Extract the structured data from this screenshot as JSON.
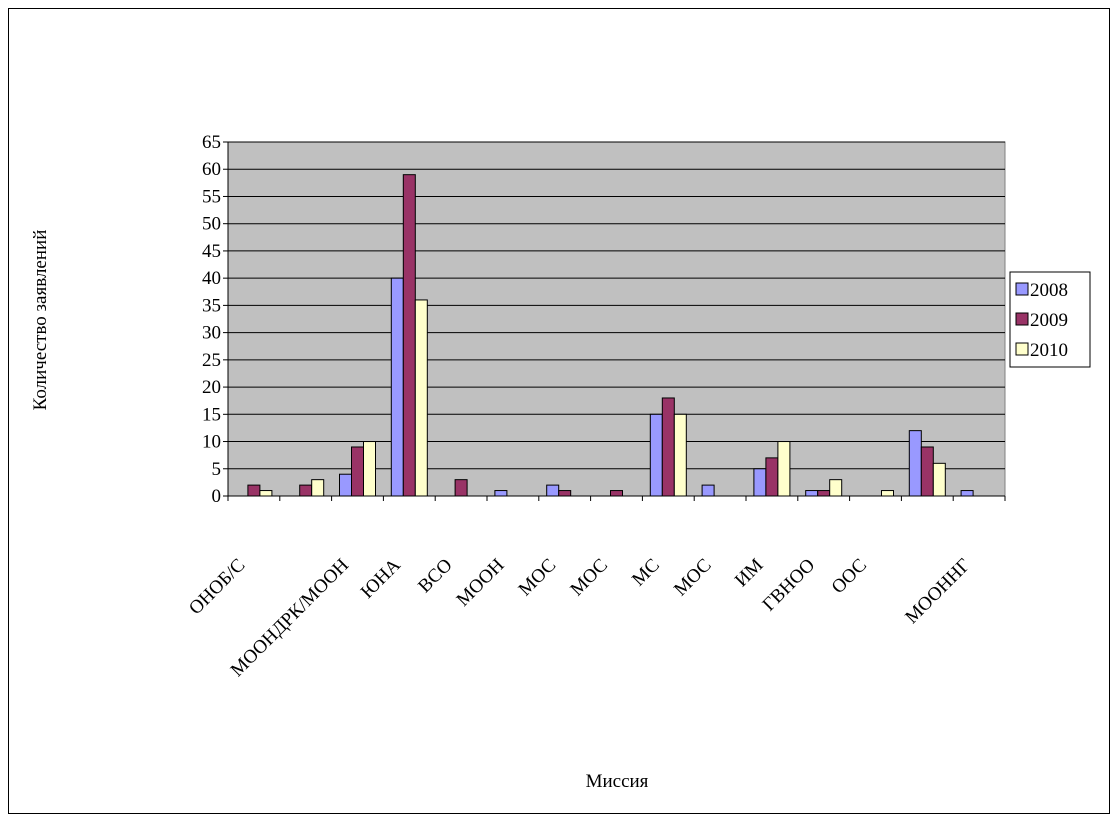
{
  "chart_data": {
    "type": "bar",
    "x_label": "Миссия",
    "y_label": "Количество заявлений",
    "categories": [
      "ОНОБ/С",
      null,
      "МООНДРК/МООН",
      "ЮНА",
      "ВСО",
      "МООН",
      "МОС",
      "МОС",
      "МС",
      "МОС",
      "ИМ",
      "ГВНОО",
      "ООС",
      null,
      "МООННГ"
    ],
    "series": [
      {
        "name": "2008",
        "color": "#9999ff",
        "values": [
          0,
          0,
          4,
          40,
          0,
          1,
          2,
          0,
          15,
          2,
          5,
          1,
          0,
          12,
          1
        ]
      },
      {
        "name": "2009",
        "color": "#993366",
        "values": [
          2,
          2,
          9,
          59,
          3,
          0,
          1,
          1,
          18,
          0,
          7,
          1,
          0,
          9,
          0
        ]
      },
      {
        "name": "2010",
        "color": "#ffffcc",
        "values": [
          1,
          3,
          10,
          36,
          0,
          0,
          0,
          0,
          15,
          0,
          10,
          3,
          1,
          6,
          0
        ]
      }
    ],
    "ylim": [
      0,
      65
    ],
    "yticks": [
      0,
      5,
      10,
      15,
      20,
      25,
      30,
      35,
      40,
      45,
      50,
      55,
      60,
      65
    ],
    "grid": true,
    "legend": "right",
    "plot_background": "#c0c0c0"
  }
}
